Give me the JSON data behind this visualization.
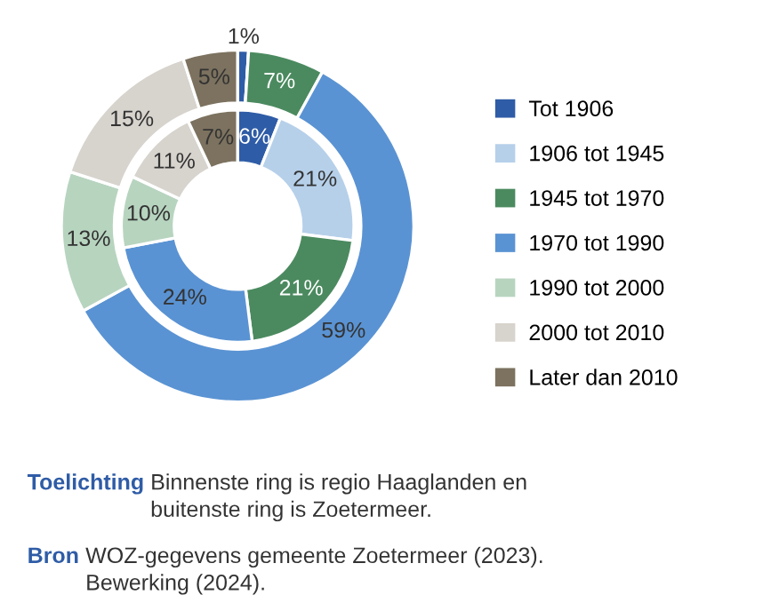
{
  "chart_data": {
    "type": "donut",
    "categories": [
      "Tot 1906",
      "1906 tot 1945",
      "1945 tot 1970",
      "1970 tot 1990",
      "1990 tot 2000",
      "2000 tot 2010",
      "Later dan 2010"
    ],
    "colors": [
      "#2f5ca6",
      "#b6d0ea",
      "#4b8a5f",
      "#5a93d3",
      "#b7d4bf",
      "#d7d3cd",
      "#7c725f"
    ],
    "series": [
      {
        "values": [
          1,
          0,
          7,
          59,
          13,
          15,
          5
        ],
        "value_labels": [
          "1%",
          null,
          "7%",
          "59%",
          "13%",
          "15%",
          "5%"
        ]
      },
      {
        "values": [
          6,
          21,
          21,
          24,
          10,
          11,
          7
        ],
        "value_labels": [
          "6%",
          "21%",
          "21%",
          "24%",
          "10%",
          "11%",
          "7%"
        ]
      }
    ],
    "legend": "right",
    "annotations": [
      "Toelichting",
      "Binnenste ring is regio Haaglanden en\nbuitenste ring is Zoetermeer.",
      "Bron",
      "WOZ-gegevens gemeente Zoetermeer (2023).\nBewerking (2024)."
    ]
  }
}
